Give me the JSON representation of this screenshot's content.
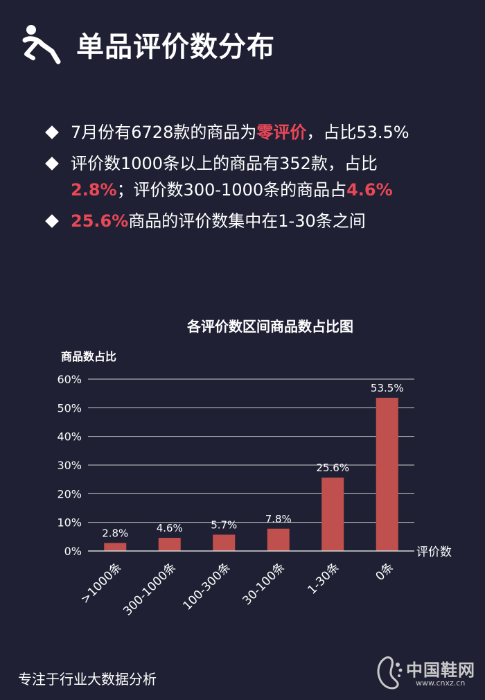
{
  "header": {
    "title": "单品评价数分布"
  },
  "bullets": [
    {
      "parts": [
        {
          "text": "7月份有6728款的商品为",
          "hl": false
        },
        {
          "text": "零评价",
          "hl": true
        },
        {
          "text": "，占比53.5%",
          "hl": false
        }
      ]
    },
    {
      "parts": [
        {
          "text": "评价数1000条以上的商品有352款，占比",
          "hl": false
        },
        {
          "text": "2.8%",
          "hl": true
        },
        {
          "text": "；评价数300-1000条的商品占",
          "hl": false
        },
        {
          "text": "4.6%",
          "hl": true
        }
      ]
    },
    {
      "parts": [
        {
          "text": "25.6%",
          "hl": true
        },
        {
          "text": "商品的评价数集中在1-30条之间",
          "hl": false
        }
      ]
    }
  ],
  "chart_data": {
    "type": "bar",
    "title": "各评价数区间商品数占比图",
    "ylabel": "商品数占比",
    "xlabel": "评价数",
    "categories": [
      ">1000条",
      "300-1000条",
      "100-300条",
      "30-100条",
      "1-30条",
      "0条"
    ],
    "values": [
      2.8,
      4.6,
      5.7,
      7.8,
      25.6,
      53.5
    ],
    "value_labels": [
      "2.8%",
      "4.6%",
      "5.7%",
      "7.8%",
      "25.6%",
      "53.5%"
    ],
    "yticks": [
      "0%",
      "10%",
      "20%",
      "30%",
      "40%",
      "50%",
      "60%"
    ],
    "ylim": [
      0,
      60
    ],
    "grid": true,
    "bar_color": "#c0504d"
  },
  "footer": {
    "text": "专注于行业大数据分析"
  },
  "logo": {
    "name": "中国鞋网",
    "url": "www.cnxz.cn"
  },
  "colors": {
    "background": "#1f2033",
    "highlight": "#e94857"
  }
}
